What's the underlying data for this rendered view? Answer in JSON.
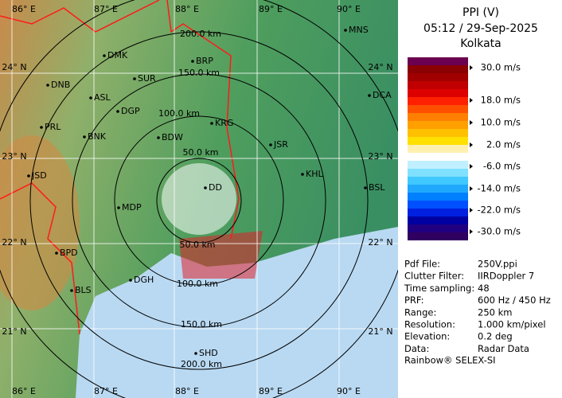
{
  "header": {
    "title": "PPI (V)",
    "time": "05:12 / 29-Sep-2025",
    "site": "Kolkata"
  },
  "legend": {
    "colors": [
      "#6b0050",
      "#8b0000",
      "#a00000",
      "#c00000",
      "#dd0000",
      "#ff2000",
      "#ff5000",
      "#ff8000",
      "#ffa000",
      "#ffc000",
      "#ffe000",
      "#fff0b0",
      "#ffffff",
      "#c0f0ff",
      "#80e0ff",
      "#40c8ff",
      "#20a8ff",
      "#0080ff",
      "#0050ff",
      "#0020e0",
      "#0000a0",
      "#200080",
      "#300060"
    ],
    "labels": [
      "30.0 m/s",
      "18.0 m/s",
      "10.0 m/s",
      "2.0 m/s",
      "-6.0 m/s",
      "-14.0 m/s",
      "-22.0 m/s",
      "-30.0 m/s"
    ]
  },
  "info": [
    [
      "Pdf File:",
      "250V.ppi"
    ],
    [
      "Clutter Filter:",
      "IIRDoppler 7"
    ],
    [
      "Time sampling:",
      "48"
    ],
    [
      "PRF:",
      "600 Hz / 450 Hz"
    ],
    [
      "Range:",
      "250 km"
    ],
    [
      "Resolution:",
      "1.000 km/pixel"
    ],
    [
      "Elevation:",
      "0.2 deg"
    ],
    [
      "Data:",
      "Radar Data"
    ]
  ],
  "footer": "Rainbow® SELEX-SI",
  "map": {
    "lon_labels": [
      "86° E",
      "87° E",
      "88° E",
      "89° E",
      "90° E"
    ],
    "lat_labels": [
      "24° N",
      "23° N",
      "22° N",
      "21° N"
    ],
    "ring_labels": [
      "50.0 km",
      "100.0 km",
      "150.0 km",
      "200.0 km"
    ],
    "cities": [
      "MNS",
      "DMK",
      "BRP",
      "DNB",
      "SUR",
      "ASL",
      "DCA",
      "DGP",
      "KRG",
      "PRL",
      "BNK",
      "BDW",
      "JSR",
      "JSD",
      "KHL",
      "BSL",
      "MDP",
      "DD",
      "BPD",
      "BLS",
      "DGH",
      "SHD"
    ]
  }
}
